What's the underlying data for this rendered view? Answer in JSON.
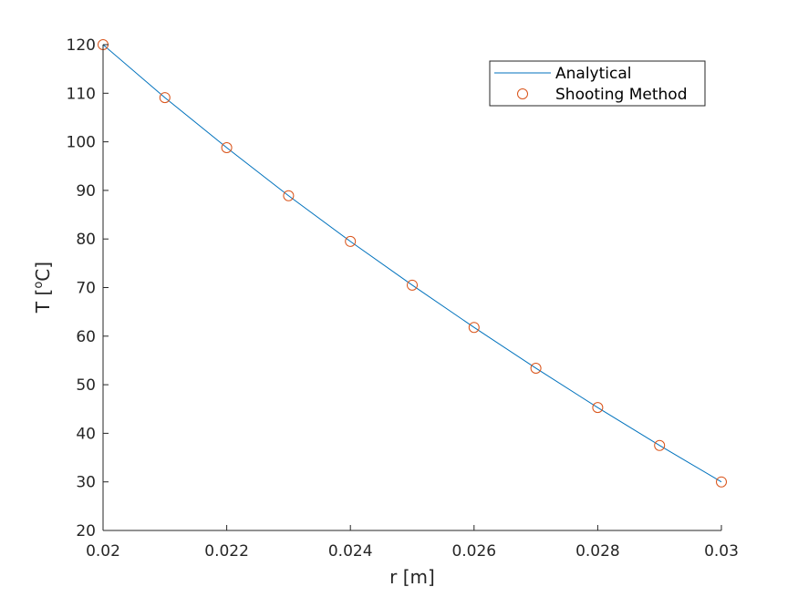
{
  "chart_data": {
    "type": "line",
    "xlabel": "r [m]",
    "ylabel_main": "T [",
    "ylabel_sup": "o",
    "ylabel_unit": "C]",
    "xlim": [
      0.02,
      0.03
    ],
    "ylim": [
      20,
      120
    ],
    "xticks": [
      {
        "v": 0.02,
        "label": "0.02"
      },
      {
        "v": 0.022,
        "label": "0.022"
      },
      {
        "v": 0.024,
        "label": "0.024"
      },
      {
        "v": 0.026,
        "label": "0.026"
      },
      {
        "v": 0.028,
        "label": "0.028"
      },
      {
        "v": 0.03,
        "label": "0.03"
      }
    ],
    "yticks": [
      {
        "v": 20,
        "label": "20"
      },
      {
        "v": 30,
        "label": "30"
      },
      {
        "v": 40,
        "label": "40"
      },
      {
        "v": 50,
        "label": "50"
      },
      {
        "v": 60,
        "label": "60"
      },
      {
        "v": 70,
        "label": "70"
      },
      {
        "v": 80,
        "label": "80"
      },
      {
        "v": 90,
        "label": "90"
      },
      {
        "v": 100,
        "label": "100"
      },
      {
        "v": 110,
        "label": "110"
      },
      {
        "v": 120,
        "label": "120"
      }
    ],
    "grid": false,
    "legend_position": "top-right",
    "series": [
      {
        "name": "Analytical",
        "style": "line",
        "color": "#0072BD",
        "x": [
          0.02,
          0.021,
          0.022,
          0.023,
          0.024,
          0.025,
          0.026,
          0.027,
          0.028,
          0.029,
          0.03
        ],
        "y": [
          120,
          109.1,
          98.8,
          88.9,
          79.5,
          70.5,
          61.8,
          53.4,
          45.3,
          37.5,
          30
        ]
      },
      {
        "name": "Shooting Method",
        "style": "marker",
        "color": "#D95319",
        "x": [
          0.02,
          0.021,
          0.022,
          0.023,
          0.024,
          0.025,
          0.026,
          0.027,
          0.028,
          0.029,
          0.03
        ],
        "y": [
          120,
          109.1,
          98.8,
          88.9,
          79.5,
          70.5,
          61.8,
          53.4,
          45.3,
          37.5,
          30
        ]
      }
    ]
  }
}
